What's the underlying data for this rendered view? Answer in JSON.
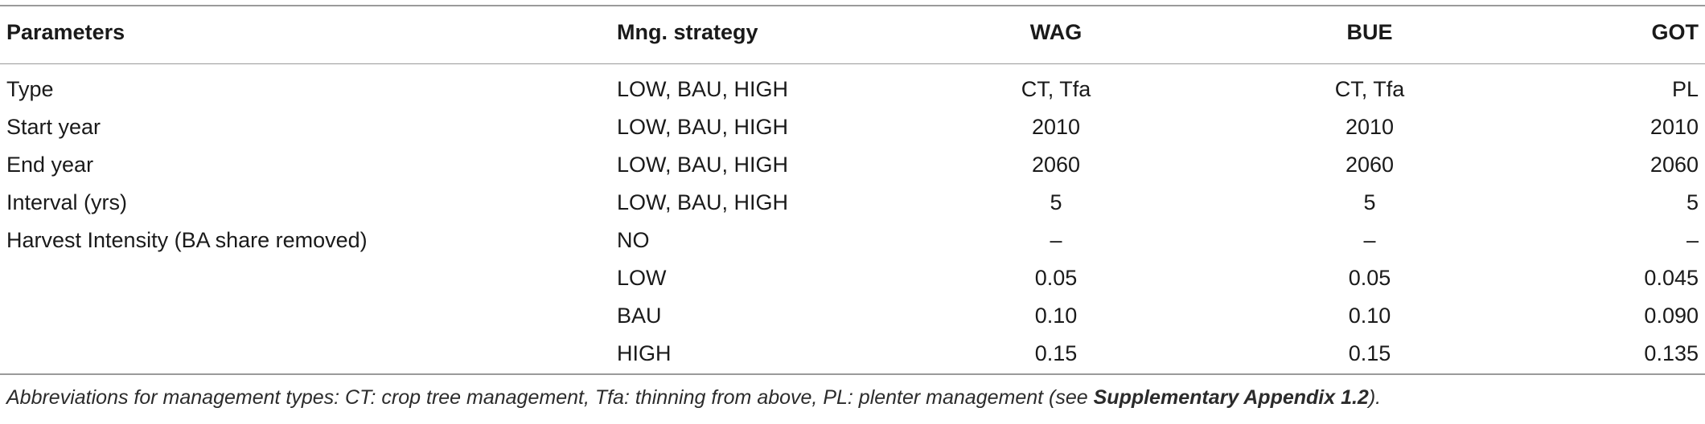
{
  "table": {
    "headers": {
      "parameters": "Parameters",
      "strategy": "Mng. strategy",
      "wag": "WAG",
      "bue": "BUE",
      "got": "GOT"
    },
    "rows": [
      {
        "parameter": "Type",
        "strategy": "LOW, BAU, HIGH",
        "wag": "CT, Tfa",
        "bue": "CT, Tfa",
        "got": "PL"
      },
      {
        "parameter": "Start year",
        "strategy": "LOW, BAU, HIGH",
        "wag": "2010",
        "bue": "2010",
        "got": "2010"
      },
      {
        "parameter": "End year",
        "strategy": "LOW, BAU, HIGH",
        "wag": "2060",
        "bue": "2060",
        "got": "2060"
      },
      {
        "parameter": "Interval (yrs)",
        "strategy": "LOW, BAU, HIGH",
        "wag": "5",
        "bue": "5",
        "got": "5"
      },
      {
        "parameter": "Harvest Intensity (BA share removed)",
        "strategy": "NO",
        "wag": "–",
        "bue": "–",
        "got": "–"
      },
      {
        "parameter": "",
        "strategy": "LOW",
        "wag": "0.05",
        "bue": "0.05",
        "got": "0.045"
      },
      {
        "parameter": "",
        "strategy": "BAU",
        "wag": "0.10",
        "bue": "0.10",
        "got": "0.090"
      },
      {
        "parameter": "",
        "strategy": "HIGH",
        "wag": "0.15",
        "bue": "0.15",
        "got": "0.135"
      }
    ]
  },
  "footnote": {
    "text_before": "Abbreviations for management types: CT: crop tree management, Tfa: thinning from above, PL: plenter management (see ",
    "link": "Supplementary Appendix 1.2",
    "text_after": ")."
  }
}
